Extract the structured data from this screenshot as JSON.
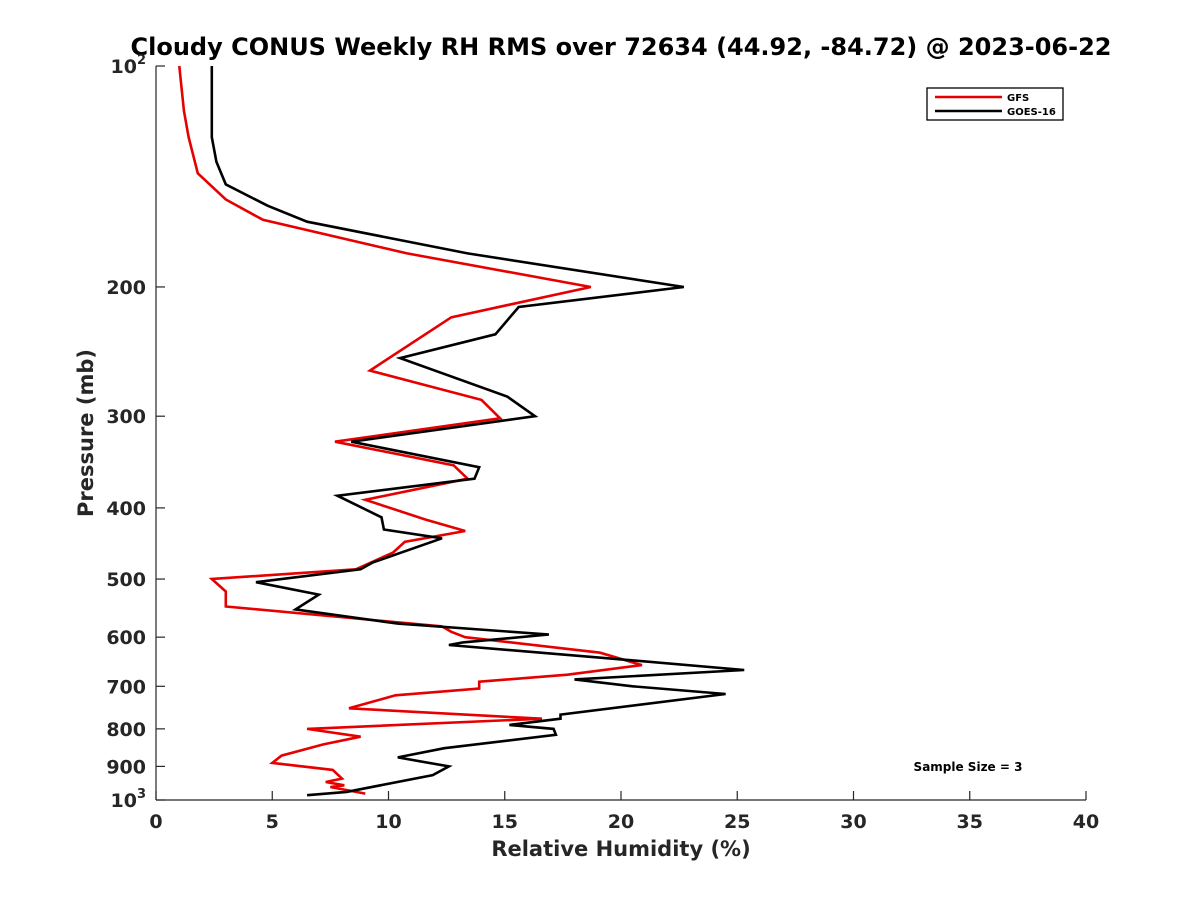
{
  "chart_data": {
    "type": "line",
    "title": "Cloudy CONUS Weekly RH RMS over 72634 (44.92, -84.72) @ 2023-06-22",
    "xlabel": "Relative Humidity (%)",
    "ylabel": "Pressure (mb)",
    "xlim": [
      0,
      40
    ],
    "ylim": [
      100,
      1000
    ],
    "y_scale": "log",
    "y_reversed": true,
    "grid": false,
    "legend_position": "top-right",
    "x_ticks": [
      "0",
      "5",
      "10",
      "15",
      "20",
      "25",
      "30",
      "35",
      "40"
    ],
    "y_ticks": [
      {
        "value": 100,
        "base": "10",
        "exp": "2"
      },
      {
        "value": 200,
        "label": "200"
      },
      {
        "value": 300,
        "label": "300"
      },
      {
        "value": 400,
        "label": "400"
      },
      {
        "value": 500,
        "label": "500"
      },
      {
        "value": 600,
        "label": "600"
      },
      {
        "value": 700,
        "label": "700"
      },
      {
        "value": 800,
        "label": "800"
      },
      {
        "value": 900,
        "label": "900"
      },
      {
        "value": 1000,
        "base": "10",
        "exp": "3"
      }
    ],
    "annotation": "Sample Size = 3",
    "series": [
      {
        "name": "GFS",
        "color": "#e60000",
        "points": [
          [
            1.0,
            100
          ],
          [
            1.2,
            115
          ],
          [
            1.4,
            125
          ],
          [
            1.8,
            140
          ],
          [
            3.0,
            152
          ],
          [
            4.6,
            162
          ],
          [
            10.8,
            180
          ],
          [
            18.7,
            200
          ],
          [
            12.7,
            220
          ],
          [
            9.2,
            260
          ],
          [
            14.0,
            285
          ],
          [
            14.8,
            302
          ],
          [
            7.7,
            325
          ],
          [
            12.8,
            350
          ],
          [
            13.4,
            365
          ],
          [
            9.0,
            390
          ],
          [
            11.6,
            415
          ],
          [
            13.3,
            430
          ],
          [
            10.7,
            445
          ],
          [
            10.2,
            460
          ],
          [
            8.6,
            485
          ],
          [
            2.4,
            500
          ],
          [
            3.0,
            520
          ],
          [
            3.0,
            545
          ],
          [
            12.3,
            580
          ],
          [
            12.7,
            590
          ],
          [
            13.3,
            600
          ],
          [
            19.1,
            630
          ],
          [
            20.9,
            655
          ],
          [
            17.7,
            675
          ],
          [
            13.9,
            690
          ],
          [
            13.9,
            705
          ],
          [
            10.3,
            720
          ],
          [
            8.3,
            750
          ],
          [
            16.6,
            775
          ],
          [
            6.5,
            800
          ],
          [
            8.8,
            820
          ],
          [
            7.2,
            840
          ],
          [
            5.4,
            870
          ],
          [
            5.0,
            890
          ],
          [
            7.6,
            910
          ],
          [
            8.0,
            935
          ],
          [
            7.3,
            945
          ],
          [
            8.1,
            955
          ],
          [
            7.5,
            960
          ],
          [
            9.0,
            980
          ]
        ]
      },
      {
        "name": "GOES-16",
        "color": "#000000",
        "points": [
          [
            2.4,
            100
          ],
          [
            2.4,
            115
          ],
          [
            2.4,
            125
          ],
          [
            2.6,
            135
          ],
          [
            3.0,
            145
          ],
          [
            4.8,
            155
          ],
          [
            6.5,
            163
          ],
          [
            13.4,
            180
          ],
          [
            22.7,
            200
          ],
          [
            15.6,
            213
          ],
          [
            14.6,
            232
          ],
          [
            10.5,
            250
          ],
          [
            15.1,
            282
          ],
          [
            16.3,
            300
          ],
          [
            8.4,
            325
          ],
          [
            13.9,
            352
          ],
          [
            13.7,
            365
          ],
          [
            7.8,
            385
          ],
          [
            9.7,
            412
          ],
          [
            9.8,
            428
          ],
          [
            12.3,
            440
          ],
          [
            9.3,
            475
          ],
          [
            8.8,
            485
          ],
          [
            4.3,
            505
          ],
          [
            7.0,
            525
          ],
          [
            6.0,
            550
          ],
          [
            10.4,
            575
          ],
          [
            16.9,
            595
          ],
          [
            13.2,
            610
          ],
          [
            12.6,
            615
          ],
          [
            20.4,
            645
          ],
          [
            25.3,
            665
          ],
          [
            18.0,
            685
          ],
          [
            20.5,
            700
          ],
          [
            24.5,
            717
          ],
          [
            17.4,
            765
          ],
          [
            17.4,
            775
          ],
          [
            15.2,
            790
          ],
          [
            17.1,
            800
          ],
          [
            17.2,
            815
          ],
          [
            12.4,
            850
          ],
          [
            10.4,
            875
          ],
          [
            12.6,
            900
          ],
          [
            11.9,
            925
          ],
          [
            8.2,
            975
          ],
          [
            6.5,
            985
          ]
        ]
      }
    ]
  }
}
